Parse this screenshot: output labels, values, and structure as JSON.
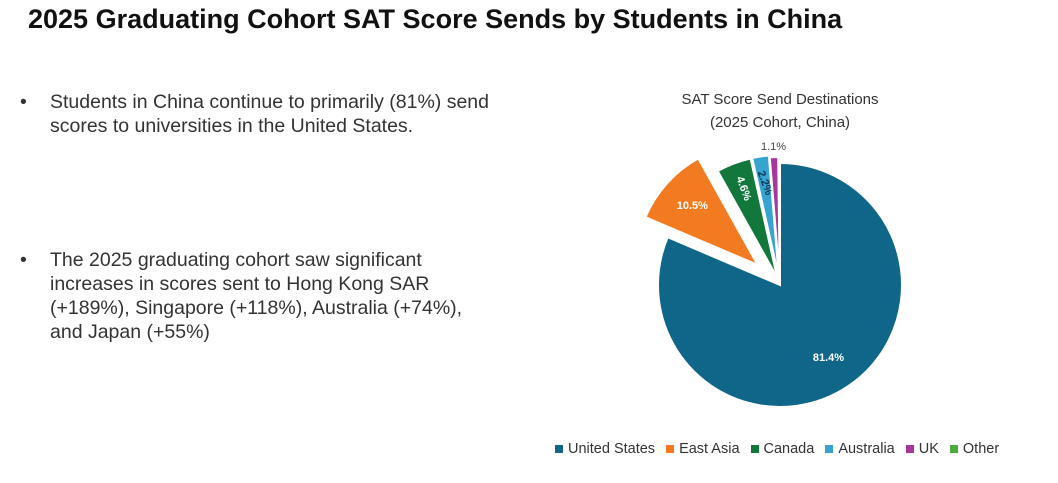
{
  "title": "2025 Graduating Cohort SAT Score Sends by Students in China",
  "bullets": [
    "Students in China continue to primarily (81%) send scores to universities in the United States.",
    "The 2025 graduating cohort saw significant increases in scores sent to Hong Kong SAR (+189%), Singapore (+118%), Australia (+74%), and Japan (+55%)"
  ],
  "chart_data": {
    "type": "pie",
    "title": "SAT Score Send Destinations",
    "subtitle": "(2025 Cohort, China)",
    "legend_position": "bottom",
    "categories": [
      "United States",
      "East Asia",
      "Canada",
      "Australia",
      "UK",
      "Other"
    ],
    "values": [
      81.4,
      10.5,
      4.6,
      2.2,
      1.1,
      0.2
    ],
    "labels": [
      "81.4%",
      "10.5%",
      "4.6%",
      "2.2%",
      "1.1%",
      ""
    ],
    "colors": [
      "#0f6688",
      "#f27a20",
      "#12773a",
      "#37a3cf",
      "#a6379c",
      "#4eaa3c"
    ]
  }
}
